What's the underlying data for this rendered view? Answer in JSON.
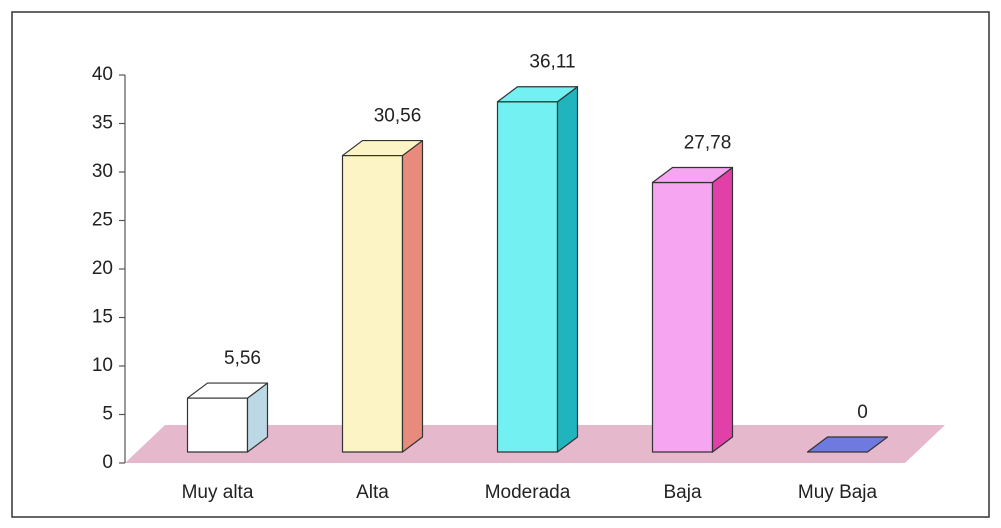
{
  "chart_data": {
    "type": "bar3d",
    "categories": [
      "Muy alta",
      "Alta",
      "Moderada",
      "Baja",
      "Muy Baja"
    ],
    "values": [
      5.56,
      30.56,
      36.11,
      27.78,
      0
    ],
    "value_labels": [
      "5,56",
      "30,56",
      "36,11",
      "27,78",
      "0"
    ],
    "colors": [
      "#ffffff",
      "#fcf4c4",
      "#72f0f2",
      "#f6a6f0",
      "#9aa4f2"
    ],
    "side_colors": [
      "#bcd8e4",
      "#e88a7c",
      "#1fb4be",
      "#e040a8",
      "#6f7ae0"
    ],
    "floor_color": "#e6b8cc",
    "ylim": [
      0,
      40
    ],
    "yticks": [
      0,
      5,
      10,
      15,
      20,
      25,
      30,
      35,
      40
    ]
  }
}
